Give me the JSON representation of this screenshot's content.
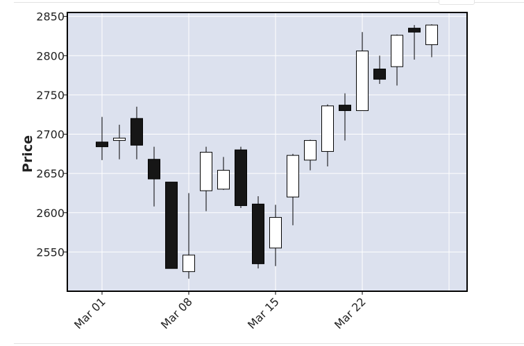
{
  "chart_data": {
    "type": "candlestick",
    "title": "",
    "xlabel": "",
    "ylabel": "Price",
    "ylim": [
      2500,
      2855
    ],
    "y_ticks": [
      2550,
      2600,
      2650,
      2700,
      2750,
      2800,
      2850
    ],
    "x_tick_labels": [
      {
        "label": "Mar 01",
        "date": "2021-03-01"
      },
      {
        "label": "Mar 08",
        "date": "2021-03-08"
      },
      {
        "label": "Mar 15",
        "date": "2021-03-15"
      },
      {
        "label": "Mar 22",
        "date": "2021-03-22"
      }
    ],
    "grid": true,
    "colors": {
      "plot_background": "#dce1ee",
      "grid": "#ffffff",
      "up_body": "#ffffff",
      "down_body": "#161616",
      "outline": "#000000"
    },
    "candles": [
      {
        "date": "2021-03-01",
        "open": 2690,
        "high": 2722,
        "low": 2667,
        "close": 2684
      },
      {
        "date": "2021-03-02",
        "open": 2692,
        "high": 2712,
        "low": 2668,
        "close": 2695
      },
      {
        "date": "2021-03-03",
        "open": 2720,
        "high": 2735,
        "low": 2668,
        "close": 2686
      },
      {
        "date": "2021-03-04",
        "open": 2668,
        "high": 2684,
        "low": 2608,
        "close": 2643
      },
      {
        "date": "2021-03-05",
        "open": 2639,
        "high": 2639,
        "low": 2529,
        "close": 2529
      },
      {
        "date": "2021-03-08",
        "open": 2525,
        "high": 2625,
        "low": 2516,
        "close": 2546
      },
      {
        "date": "2021-03-09",
        "open": 2628,
        "high": 2684,
        "low": 2602,
        "close": 2677
      },
      {
        "date": "2021-03-10",
        "open": 2630,
        "high": 2671,
        "low": 2629,
        "close": 2654
      },
      {
        "date": "2021-03-11",
        "open": 2680,
        "high": 2684,
        "low": 2606,
        "close": 2609
      },
      {
        "date": "2021-03-12",
        "open": 2611,
        "high": 2621,
        "low": 2529,
        "close": 2535
      },
      {
        "date": "2021-03-15",
        "open": 2555,
        "high": 2610,
        "low": 2532,
        "close": 2594
      },
      {
        "date": "2021-03-16",
        "open": 2620,
        "high": 2675,
        "low": 2584,
        "close": 2673
      },
      {
        "date": "2021-03-17",
        "open": 2667,
        "high": 2693,
        "low": 2654,
        "close": 2692
      },
      {
        "date": "2021-03-18",
        "open": 2678,
        "high": 2738,
        "low": 2659,
        "close": 2736
      },
      {
        "date": "2021-03-19",
        "open": 2737,
        "high": 2752,
        "low": 2692,
        "close": 2730
      },
      {
        "date": "2021-03-22",
        "open": 2730,
        "high": 2830,
        "low": 2730,
        "close": 2806
      },
      {
        "date": "2021-03-23",
        "open": 2783,
        "high": 2800,
        "low": 2764,
        "close": 2770
      },
      {
        "date": "2021-03-24",
        "open": 2786,
        "high": 2827,
        "low": 2762,
        "close": 2826
      },
      {
        "date": "2021-03-25",
        "open": 2835,
        "high": 2839,
        "low": 2795,
        "close": 2830
      },
      {
        "date": "2021-03-26",
        "open": 2814,
        "high": 2840,
        "low": 2798,
        "close": 2839
      }
    ]
  }
}
